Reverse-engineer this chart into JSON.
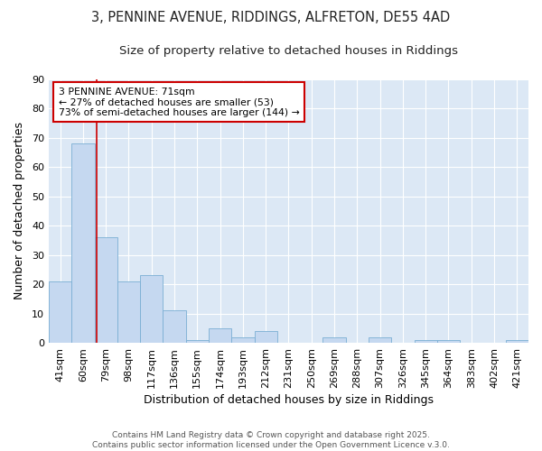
{
  "title_line1": "3, PENNINE AVENUE, RIDDINGS, ALFRETON, DE55 4AD",
  "title_line2": "Size of property relative to detached houses in Riddings",
  "xlabel": "Distribution of detached houses by size in Riddings",
  "ylabel": "Number of detached properties",
  "categories": [
    "41sqm",
    "60sqm",
    "79sqm",
    "98sqm",
    "117sqm",
    "136sqm",
    "155sqm",
    "174sqm",
    "193sqm",
    "212sqm",
    "231sqm",
    "250sqm",
    "269sqm",
    "288sqm",
    "307sqm",
    "326sqm",
    "345sqm",
    "364sqm",
    "383sqm",
    "402sqm",
    "421sqm"
  ],
  "values": [
    21,
    68,
    36,
    21,
    23,
    11,
    1,
    5,
    2,
    4,
    0,
    0,
    2,
    0,
    2,
    0,
    1,
    1,
    0,
    0,
    1
  ],
  "bar_color": "#c5d8f0",
  "bar_edge_color": "#7aafd4",
  "vline_x": 1.58,
  "vline_color": "#cc0000",
  "annotation_text": "3 PENNINE AVENUE: 71sqm\n← 27% of detached houses are smaller (53)\n73% of semi-detached houses are larger (144) →",
  "annotation_box_color": "#ffffff",
  "annotation_box_edge": "#cc0000",
  "ylim": [
    0,
    90
  ],
  "yticks": [
    0,
    10,
    20,
    30,
    40,
    50,
    60,
    70,
    80,
    90
  ],
  "figure_bg_color": "#ffffff",
  "plot_bg_color": "#dce8f5",
  "grid_color": "#ffffff",
  "title_fontsize": 10.5,
  "subtitle_fontsize": 9.5,
  "axis_label_fontsize": 9,
  "tick_fontsize": 8,
  "footer": "Contains HM Land Registry data © Crown copyright and database right 2025.\nContains public sector information licensed under the Open Government Licence v.3.0."
}
